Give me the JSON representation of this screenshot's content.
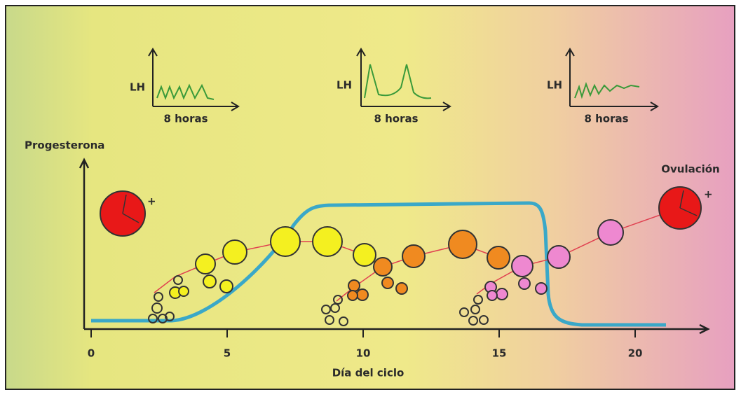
{
  "insets": [
    {
      "label": "LH",
      "axis": "8 horas"
    },
    {
      "label": "LH",
      "axis": "8 horas"
    },
    {
      "label": "LH",
      "axis": "8 horas"
    }
  ],
  "y_axis_label": "Progesterona",
  "x_axis_label": "Día del ciclo",
  "ovulation_label": "Ovulación",
  "x_ticks": [
    0,
    5,
    10,
    15,
    20
  ]
}
